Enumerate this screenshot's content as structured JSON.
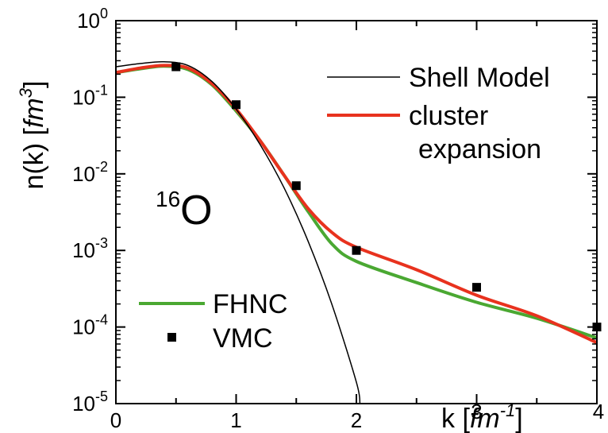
{
  "chart_data": {
    "type": "line",
    "title": "",
    "annotation": {
      "mass_number": "16",
      "element": "O"
    },
    "xlabel": {
      "prefix": "k [",
      "unit": "fm",
      "exp": "-1",
      "suffix": "]"
    },
    "ylabel": {
      "prefix": "n(k) [",
      "unit": "fm",
      "exp": "3",
      "suffix": "]"
    },
    "xlim": [
      0,
      4
    ],
    "ylim": [
      1e-05,
      1
    ],
    "yscale": "log",
    "grid": false,
    "x_ticks": [
      {
        "value": 0,
        "label": "0"
      },
      {
        "value": 1,
        "label": "1"
      },
      {
        "value": 2,
        "label": "2"
      },
      {
        "value": 3,
        "label": "3"
      },
      {
        "value": 4,
        "label": "4"
      }
    ],
    "y_ticks": [
      {
        "value": 1,
        "base": "10",
        "exp": "0"
      },
      {
        "value": 0.1,
        "base": "10",
        "exp": "-1"
      },
      {
        "value": 0.01,
        "base": "10",
        "exp": "-2"
      },
      {
        "value": 0.001,
        "base": "10",
        "exp": "-3"
      },
      {
        "value": 0.0001,
        "base": "10",
        "exp": "-4"
      },
      {
        "value": 1e-05,
        "base": "10",
        "exp": "-5"
      }
    ],
    "legend_top": {
      "placement": "top-right",
      "entries": [
        "shell",
        "cluster"
      ]
    },
    "legend_bottom": {
      "placement": "bottom-left",
      "entries": [
        "fhnc",
        "vmc"
      ]
    },
    "series": [
      {
        "id": "shell",
        "name": "Shell Model",
        "style": "line",
        "color": "#000000",
        "points": [
          [
            0,
            0.25
          ],
          [
            0.2,
            0.275
          ],
          [
            0.4,
            0.29
          ],
          [
            0.6,
            0.26
          ],
          [
            0.8,
            0.16
          ],
          [
            1.0,
            0.07
          ],
          [
            1.2,
            0.024
          ],
          [
            1.4,
            0.0065
          ],
          [
            1.6,
            0.0013
          ],
          [
            1.8,
            0.00019
          ],
          [
            2.0,
            1.9e-05
          ],
          [
            2.03,
            1e-05
          ]
        ]
      },
      {
        "id": "cluster",
        "name": "cluster",
        "name_line2": "expansion",
        "style": "line",
        "color": "#e8321e",
        "points": [
          [
            0,
            0.21
          ],
          [
            0.2,
            0.24
          ],
          [
            0.4,
            0.26
          ],
          [
            0.6,
            0.24
          ],
          [
            0.8,
            0.15
          ],
          [
            1.0,
            0.07
          ],
          [
            1.2,
            0.027
          ],
          [
            1.4,
            0.0095
          ],
          [
            1.6,
            0.0035
          ],
          [
            1.8,
            0.0017
          ],
          [
            2.0,
            0.0011
          ],
          [
            2.5,
            0.00056
          ],
          [
            3.0,
            0.00026
          ],
          [
            3.5,
            0.00014
          ],
          [
            4.0,
            6.25e-05
          ]
        ]
      },
      {
        "id": "fhnc",
        "name": "FHNC",
        "style": "line",
        "color": "#4aa832",
        "points": [
          [
            0,
            0.21
          ],
          [
            0.2,
            0.235
          ],
          [
            0.4,
            0.255
          ],
          [
            0.6,
            0.23
          ],
          [
            0.8,
            0.145
          ],
          [
            1.0,
            0.066
          ],
          [
            1.2,
            0.027
          ],
          [
            1.4,
            0.0095
          ],
          [
            1.6,
            0.0032
          ],
          [
            1.8,
            0.0012
          ],
          [
            2.0,
            0.00072
          ],
          [
            2.5,
            0.00038
          ],
          [
            3.0,
            0.00021
          ],
          [
            3.5,
            0.00013
          ],
          [
            4.0,
            7.2e-05
          ]
        ]
      },
      {
        "id": "vmc",
        "name": "VMC",
        "style": "markers",
        "color": "#000000",
        "points": [
          [
            0.5,
            0.25
          ],
          [
            1.0,
            0.08
          ],
          [
            1.5,
            0.007
          ],
          [
            2.0,
            0.001
          ],
          [
            3.0,
            0.00033
          ],
          [
            4.0,
            0.0001
          ]
        ]
      }
    ]
  }
}
